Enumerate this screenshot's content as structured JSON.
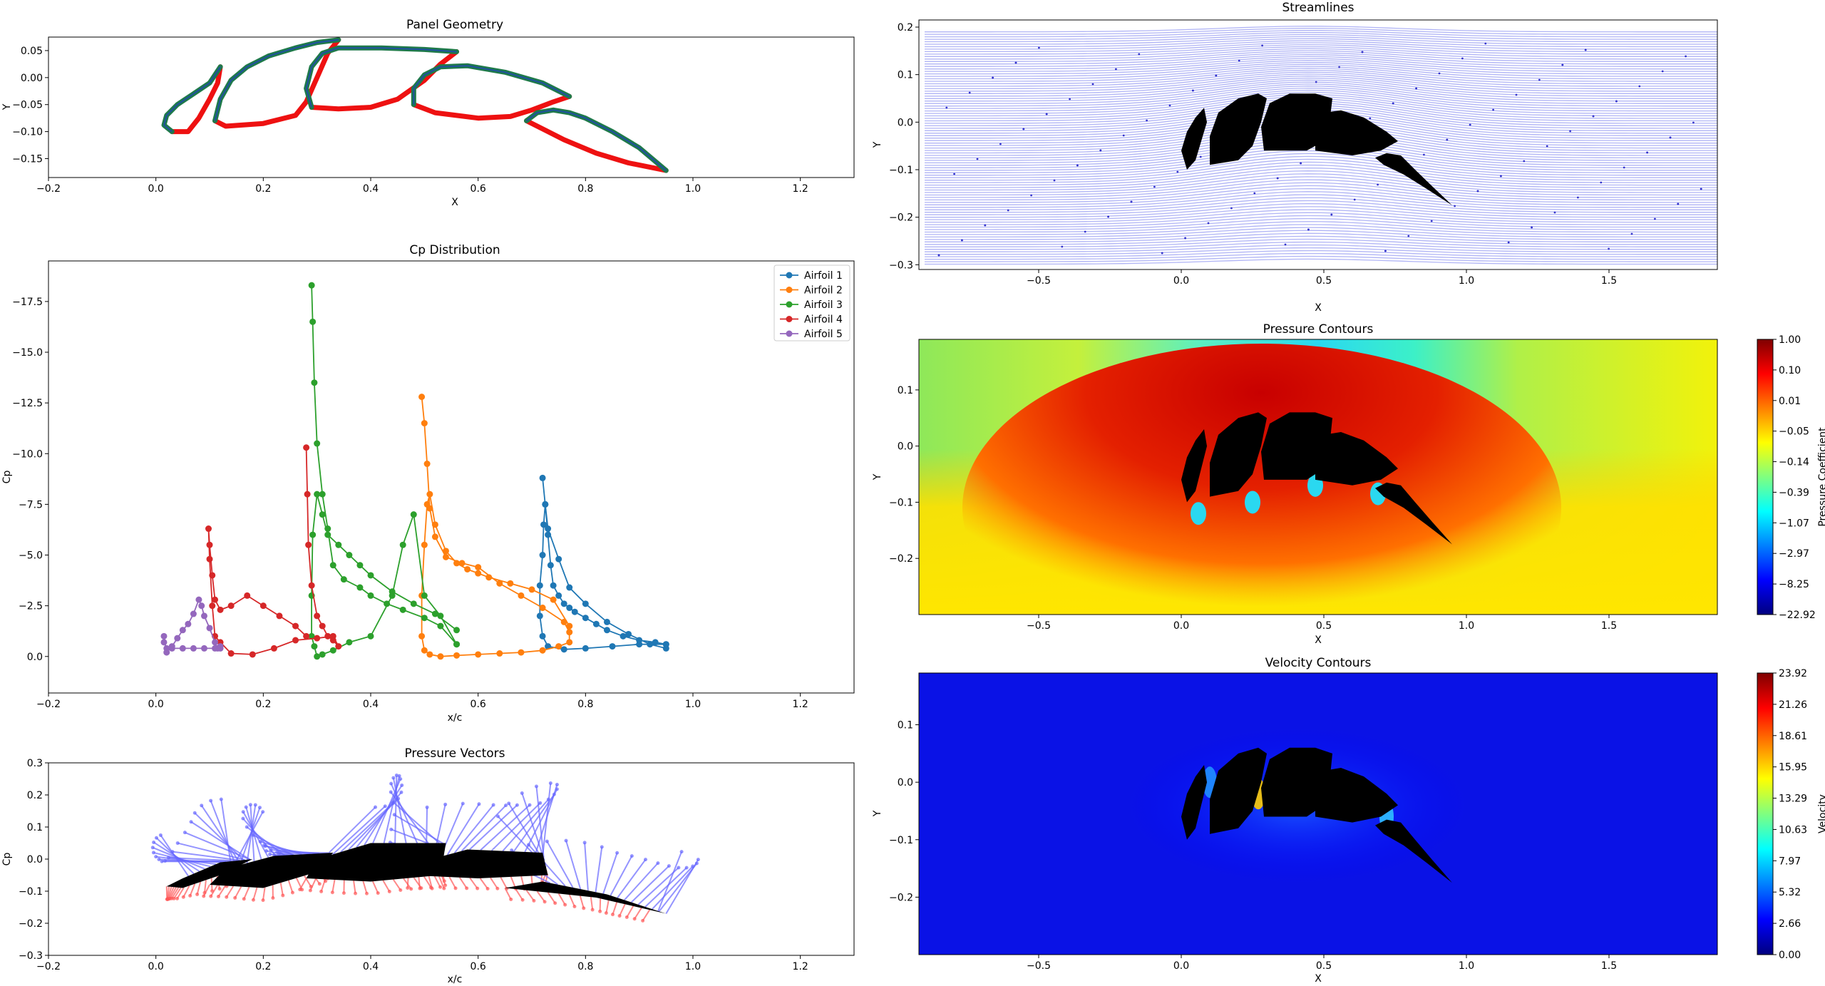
{
  "chart_data": [
    {
      "id": "panel_geometry",
      "type": "line",
      "title": "Panel Geometry",
      "xlabel": "X",
      "ylabel": "Y",
      "xlim": [
        -0.2,
        1.3
      ],
      "ylim": [
        -0.185,
        0.075
      ],
      "xticks": [
        -0.2,
        0.0,
        0.2,
        0.4,
        0.6,
        0.8,
        1.0,
        1.2
      ],
      "yticks": [
        0.05,
        0.0,
        -0.05,
        -0.1,
        -0.15
      ],
      "xtick_labels": [
        "−0.2",
        "0.0",
        "0.2",
        "0.4",
        "0.6",
        "0.8",
        "1.0",
        "1.2"
      ],
      "ytick_labels": [
        "0.05",
        "0.00",
        "−0.05",
        "−0.10",
        "−0.15"
      ],
      "colors": {
        "upper": "#1f7a4a",
        "lower": "#ee1111",
        "edge": "#1f4fa0"
      },
      "airfoils": [
        {
          "upper": [
            [
              0.03,
              -0.1
            ],
            [
              0.015,
              -0.088
            ],
            [
              0.02,
              -0.07
            ],
            [
              0.04,
              -0.05
            ],
            [
              0.07,
              -0.03
            ],
            [
              0.1,
              -0.01
            ],
            [
              0.12,
              0.02
            ]
          ],
          "lower": [
            [
              0.03,
              -0.1
            ],
            [
              0.06,
              -0.1
            ],
            [
              0.08,
              -0.075
            ],
            [
              0.1,
              -0.04
            ],
            [
              0.115,
              -0.01
            ],
            [
              0.12,
              0.02
            ]
          ]
        },
        {
          "upper": [
            [
              0.11,
              -0.08
            ],
            [
              0.12,
              -0.04
            ],
            [
              0.14,
              -0.005
            ],
            [
              0.17,
              0.02
            ],
            [
              0.21,
              0.04
            ],
            [
              0.26,
              0.055
            ],
            [
              0.3,
              0.065
            ],
            [
              0.34,
              0.07
            ]
          ],
          "lower": [
            [
              0.11,
              -0.08
            ],
            [
              0.13,
              -0.09
            ],
            [
              0.2,
              -0.085
            ],
            [
              0.26,
              -0.07
            ],
            [
              0.28,
              -0.045
            ],
            [
              0.3,
              0.0
            ],
            [
              0.32,
              0.045
            ],
            [
              0.34,
              0.07
            ]
          ]
        },
        {
          "upper": [
            [
              0.29,
              -0.055
            ],
            [
              0.28,
              -0.02
            ],
            [
              0.29,
              0.02
            ],
            [
              0.31,
              0.045
            ],
            [
              0.34,
              0.055
            ],
            [
              0.42,
              0.055
            ],
            [
              0.5,
              0.052
            ],
            [
              0.56,
              0.048
            ]
          ],
          "lower": [
            [
              0.29,
              -0.055
            ],
            [
              0.34,
              -0.058
            ],
            [
              0.4,
              -0.055
            ],
            [
              0.45,
              -0.04
            ],
            [
              0.5,
              -0.005
            ],
            [
              0.53,
              0.025
            ],
            [
              0.56,
              0.048
            ]
          ]
        },
        {
          "upper": [
            [
              0.48,
              -0.05
            ],
            [
              0.48,
              -0.02
            ],
            [
              0.5,
              0.005
            ],
            [
              0.53,
              0.02
            ],
            [
              0.58,
              0.022
            ],
            [
              0.65,
              0.01
            ],
            [
              0.72,
              -0.01
            ],
            [
              0.77,
              -0.035
            ]
          ],
          "lower": [
            [
              0.48,
              -0.05
            ],
            [
              0.52,
              -0.065
            ],
            [
              0.6,
              -0.075
            ],
            [
              0.66,
              -0.072
            ],
            [
              0.7,
              -0.06
            ],
            [
              0.74,
              -0.045
            ],
            [
              0.77,
              -0.035
            ]
          ]
        },
        {
          "upper": [
            [
              0.69,
              -0.08
            ],
            [
              0.71,
              -0.065
            ],
            [
              0.74,
              -0.06
            ],
            [
              0.77,
              -0.065
            ],
            [
              0.8,
              -0.075
            ],
            [
              0.85,
              -0.1
            ],
            [
              0.9,
              -0.13
            ],
            [
              0.95,
              -0.172
            ]
          ],
          "lower": [
            [
              0.69,
              -0.08
            ],
            [
              0.72,
              -0.095
            ],
            [
              0.76,
              -0.115
            ],
            [
              0.82,
              -0.14
            ],
            [
              0.88,
              -0.158
            ],
            [
              0.95,
              -0.172
            ]
          ]
        }
      ]
    },
    {
      "id": "cp_distribution",
      "type": "line",
      "title": "Cp Distribution",
      "xlabel": "x/c",
      "ylabel": "Cp",
      "xlim": [
        -0.2,
        1.3
      ],
      "ylim": [
        1.8,
        -19.5
      ],
      "y_inverted": true,
      "xticks": [
        -0.2,
        0.0,
        0.2,
        0.4,
        0.6,
        0.8,
        1.0,
        1.2
      ],
      "yticks": [
        -17.5,
        -15.0,
        -12.5,
        -10.0,
        -7.5,
        -5.0,
        -2.5,
        0.0
      ],
      "xtick_labels": [
        "−0.2",
        "0.0",
        "0.2",
        "0.4",
        "0.6",
        "0.8",
        "1.0",
        "1.2"
      ],
      "ytick_labels": [
        "−17.5",
        "−15.0",
        "−12.5",
        "−10.0",
        "−7.5",
        "−5.0",
        "−2.5",
        "0.0"
      ],
      "legend_position": "top-right",
      "series": [
        {
          "name": "Airfoil 1",
          "color": "#1f77b4",
          "x": [
            0.72,
            0.725,
            0.73,
            0.75,
            0.77,
            0.8,
            0.84,
            0.88,
            0.92,
            0.95,
            0.95,
            0.9,
            0.85,
            0.8,
            0.76,
            0.73,
            0.72,
            0.715,
            0.715,
            0.72,
            0.722,
            0.725,
            0.73,
            0.735,
            0.74,
            0.75,
            0.76,
            0.77,
            0.78,
            0.8,
            0.82,
            0.84,
            0.87,
            0.9,
            0.93,
            0.95
          ],
          "y": [
            -8.8,
            -7.5,
            -6.3,
            -4.8,
            -3.4,
            -2.6,
            -1.7,
            -1.1,
            -0.6,
            -0.4,
            -0.6,
            -0.6,
            -0.5,
            -0.4,
            -0.35,
            -0.5,
            -1.0,
            -2.0,
            -3.5,
            -5.0,
            -6.5,
            -7.5,
            -6.0,
            -4.5,
            -3.5,
            -3.0,
            -2.6,
            -2.4,
            -2.2,
            -1.9,
            -1.6,
            -1.3,
            -1.0,
            -0.8,
            -0.7,
            -0.6
          ]
        },
        {
          "name": "Airfoil 2",
          "color": "#ff7f0e",
          "x": [
            0.495,
            0.5,
            0.505,
            0.51,
            0.52,
            0.54,
            0.57,
            0.6,
            0.64,
            0.68,
            0.72,
            0.76,
            0.77,
            0.77,
            0.75,
            0.72,
            0.68,
            0.64,
            0.6,
            0.56,
            0.53,
            0.51,
            0.5,
            0.495,
            0.495,
            0.5,
            0.505,
            0.51,
            0.52,
            0.54,
            0.56,
            0.58,
            0.6,
            0.62,
            0.66,
            0.7,
            0.74,
            0.77
          ],
          "y": [
            -12.8,
            -11.5,
            -9.5,
            -7.3,
            -5.9,
            -4.9,
            -4.6,
            -4.4,
            -3.6,
            -3.0,
            -2.4,
            -1.7,
            -1.2,
            -0.7,
            -0.5,
            -0.3,
            -0.2,
            -0.15,
            -0.1,
            -0.05,
            0.0,
            -0.1,
            -0.3,
            -1.0,
            -3.0,
            -5.5,
            -7.5,
            -8.0,
            -6.5,
            -5.2,
            -4.6,
            -4.3,
            -4.1,
            -3.9,
            -3.6,
            -3.3,
            -2.8,
            -1.5
          ]
        },
        {
          "name": "Airfoil 3",
          "color": "#2ca02c",
          "x": [
            0.29,
            0.292,
            0.295,
            0.3,
            0.31,
            0.32,
            0.33,
            0.35,
            0.38,
            0.4,
            0.43,
            0.46,
            0.5,
            0.53,
            0.56,
            0.56,
            0.53,
            0.5,
            0.48,
            0.46,
            0.44,
            0.4,
            0.36,
            0.33,
            0.31,
            0.3,
            0.295,
            0.29,
            0.29,
            0.292,
            0.3,
            0.31,
            0.32,
            0.34,
            0.36,
            0.38,
            0.4,
            0.44,
            0.48,
            0.52,
            0.56
          ],
          "y": [
            -18.3,
            -16.5,
            -13.5,
            -10.5,
            -8.0,
            -6.3,
            -4.5,
            -3.8,
            -3.4,
            -3.0,
            -2.6,
            -2.3,
            -1.9,
            -1.5,
            -0.6,
            -0.6,
            -2.0,
            -3.0,
            -7.0,
            -5.5,
            -3.0,
            -1.0,
            -0.7,
            -0.3,
            -0.1,
            0.0,
            -0.5,
            -1.0,
            -3.0,
            -6.0,
            -8.0,
            -7.0,
            -6.0,
            -5.5,
            -5.0,
            -4.5,
            -4.0,
            -3.2,
            -2.6,
            -2.1,
            -1.3
          ]
        },
        {
          "name": "Airfoil 4",
          "color": "#d62728",
          "x": [
            0.28,
            0.282,
            0.284,
            0.29,
            0.3,
            0.31,
            0.32,
            0.33,
            0.34,
            0.33,
            0.3,
            0.26,
            0.22,
            0.18,
            0.14,
            0.12,
            0.11,
            0.105,
            0.1,
            0.098,
            0.1,
            0.105,
            0.11,
            0.12,
            0.14,
            0.17,
            0.2,
            0.23,
            0.26,
            0.28
          ],
          "y": [
            -10.3,
            -8.0,
            -5.5,
            -3.5,
            -2.0,
            -1.5,
            -1.0,
            -0.8,
            -0.5,
            -1.0,
            -0.9,
            -0.8,
            -0.4,
            -0.1,
            -0.15,
            -0.7,
            -1.0,
            -2.5,
            -4.8,
            -6.3,
            -5.5,
            -4.0,
            -2.8,
            -2.3,
            -2.5,
            -3.0,
            -2.5,
            -2.0,
            -1.5,
            -1.0
          ]
        },
        {
          "name": "Airfoil 5",
          "color": "#9467bd",
          "x": [
            0.015,
            0.02,
            0.03,
            0.04,
            0.05,
            0.06,
            0.07,
            0.08,
            0.085,
            0.09,
            0.1,
            0.11,
            0.115,
            0.12,
            0.12,
            0.11,
            0.09,
            0.07,
            0.05,
            0.03,
            0.02,
            0.015
          ],
          "y": [
            -1.0,
            -0.2,
            -0.5,
            -0.9,
            -1.3,
            -1.6,
            -2.1,
            -2.8,
            -2.5,
            -2.0,
            -1.4,
            -0.7,
            -0.4,
            -0.5,
            -0.4,
            -0.4,
            -0.4,
            -0.4,
            -0.4,
            -0.4,
            -0.4,
            -0.7
          ]
        }
      ]
    },
    {
      "id": "pressure_vectors",
      "type": "scatter",
      "title": "Pressure Vectors",
      "xlabel": "x/c",
      "ylabel": "Cp",
      "xlim": [
        -0.2,
        1.3
      ],
      "ylim": [
        -0.3,
        0.3
      ],
      "xticks": [
        -0.2,
        0.0,
        0.2,
        0.4,
        0.6,
        0.8,
        1.0,
        1.2
      ],
      "yticks": [
        0.3,
        0.2,
        0.1,
        0.0,
        -0.1,
        -0.2,
        -0.3
      ],
      "xtick_labels": [
        "−0.2",
        "0.0",
        "0.2",
        "0.4",
        "0.6",
        "0.8",
        "1.0",
        "1.2"
      ],
      "ytick_labels": [
        "0.3",
        "0.2",
        "0.1",
        "0.0",
        "−0.1",
        "−0.2",
        "−0.3"
      ],
      "colors": {
        "suction": "#6666ff",
        "pressure": "#ff5555",
        "body": "#000000"
      }
    },
    {
      "id": "streamlines",
      "type": "line",
      "title": "Streamlines",
      "xlabel": "X",
      "ylabel": "Y",
      "xlim": [
        -0.92,
        1.88
      ],
      "ylim": [
        -0.31,
        0.215
      ],
      "xticks": [
        -0.5,
        0.0,
        0.5,
        1.0,
        1.5
      ],
      "yticks": [
        0.2,
        0.1,
        0.0,
        -0.1,
        -0.2,
        -0.3
      ],
      "xtick_labels": [
        "−0.5",
        "0.0",
        "0.5",
        "1.0",
        "1.5"
      ],
      "ytick_labels": [
        "0.2",
        "0.1",
        "0.0",
        "−0.1",
        "−0.2",
        "−0.3"
      ],
      "colors": {
        "lines": "#b0b4f5",
        "dots": "#3333cc",
        "body": "#000000"
      }
    },
    {
      "id": "pressure_contours",
      "type": "heatmap",
      "title": "Pressure Contours",
      "xlabel": "X",
      "ylabel": "Y",
      "xlim": [
        -0.92,
        1.88
      ],
      "ylim": [
        -0.3,
        0.19
      ],
      "xticks": [
        -0.5,
        0.0,
        0.5,
        1.0,
        1.5
      ],
      "yticks": [
        0.1,
        0.0,
        -0.1,
        -0.2
      ],
      "xtick_labels": [
        "−0.5",
        "0.0",
        "0.5",
        "1.0",
        "1.5"
      ],
      "ytick_labels": [
        "0.1",
        "0.0",
        "−0.1",
        "−0.2"
      ],
      "colorbar": {
        "label": "Pressure Coefficient",
        "ticks": [
          "1.00",
          "0.10",
          "0.01",
          "−0.05",
          "−0.14",
          "−0.39",
          "−1.07",
          "−2.97",
          "−8.25",
          "−22.92"
        ]
      }
    },
    {
      "id": "velocity_contours",
      "type": "heatmap",
      "title": "Velocity Contours",
      "xlabel": "X",
      "ylabel": "Y",
      "xlim": [
        -0.92,
        1.88
      ],
      "ylim": [
        -0.3,
        0.19
      ],
      "xticks": [
        -0.5,
        0.0,
        0.5,
        1.0,
        1.5
      ],
      "yticks": [
        0.1,
        0.0,
        -0.1,
        -0.2
      ],
      "xtick_labels": [
        "−0.5",
        "0.0",
        "0.5",
        "1.0",
        "1.5"
      ],
      "ytick_labels": [
        "0.1",
        "0.0",
        "−0.1",
        "−0.2"
      ],
      "colorbar": {
        "label": "Velocity",
        "ticks": [
          "23.92",
          "21.26",
          "18.61",
          "15.95",
          "13.29",
          "10.63",
          "7.97",
          "5.32",
          "2.66",
          "0.00"
        ]
      }
    }
  ]
}
